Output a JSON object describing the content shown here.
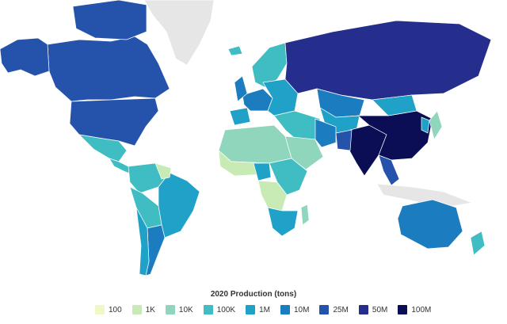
{
  "legend": {
    "title": "2020 Production (tons)",
    "items": [
      {
        "label": "100",
        "color": "#eef9c7"
      },
      {
        "label": "1K",
        "color": "#c8eab5"
      },
      {
        "label": "10K",
        "color": "#8fd6bd"
      },
      {
        "label": "100K",
        "color": "#3fbdc2"
      },
      {
        "label": "1M",
        "color": "#1fa1c8"
      },
      {
        "label": "10M",
        "color": "#1b7cbf"
      },
      {
        "label": "25M",
        "color": "#2553ac"
      },
      {
        "label": "50M",
        "color": "#262e8d"
      },
      {
        "label": "100M",
        "color": "#0b0e55"
      }
    ]
  },
  "colors": {
    "no_data": "#e6e6e6",
    "border": "#ffffff",
    "background": "#ffffff"
  },
  "regions": [
    {
      "name": "Canada",
      "level": 6
    },
    {
      "name": "Alaska",
      "level": 6
    },
    {
      "name": "Canadian Arctic",
      "level": 6
    },
    {
      "name": "Greenland",
      "level": -1
    },
    {
      "name": "United States",
      "level": 6
    },
    {
      "name": "Mexico",
      "level": 3
    },
    {
      "name": "Central America",
      "level": 3
    },
    {
      "name": "Colombia Venezuela",
      "level": 3
    },
    {
      "name": "Brazil",
      "level": 4
    },
    {
      "name": "Peru Bolivia",
      "level": 3
    },
    {
      "name": "Argentina",
      "level": 5
    },
    {
      "name": "Chile",
      "level": 4
    },
    {
      "name": "Guianas",
      "level": 1
    },
    {
      "name": "Iceland",
      "level": 3
    },
    {
      "name": "Scandinavia",
      "level": 3
    },
    {
      "name": "Western Europe",
      "level": 5
    },
    {
      "name": "Eastern Europe",
      "level": 4
    },
    {
      "name": "Iberia",
      "level": 4
    },
    {
      "name": "UK",
      "level": 5
    },
    {
      "name": "Russia",
      "level": 7
    },
    {
      "name": "Kazakhstan",
      "level": 5
    },
    {
      "name": "Central Asia",
      "level": 4
    },
    {
      "name": "Middle East",
      "level": 3
    },
    {
      "name": "Iran",
      "level": 5
    },
    {
      "name": "Saudi Arabia",
      "level": 2
    },
    {
      "name": "North Africa",
      "level": 2
    },
    {
      "name": "Sahel",
      "level": 1
    },
    {
      "name": "Nigeria",
      "level": 4
    },
    {
      "name": "East Africa",
      "level": 3
    },
    {
      "name": "Central Africa",
      "level": 1
    },
    {
      "name": "Southern Africa",
      "level": 4
    },
    {
      "name": "Madagascar",
      "level": 2
    },
    {
      "name": "India",
      "level": 8
    },
    {
      "name": "Pakistan",
      "level": 6
    },
    {
      "name": "China",
      "level": 8
    },
    {
      "name": "Mongolia",
      "level": 4
    },
    {
      "name": "Southeast Asia",
      "level": 6
    },
    {
      "name": "Indonesia",
      "level": -1
    },
    {
      "name": "Japan",
      "level": 2
    },
    {
      "name": "Korea",
      "level": 4
    },
    {
      "name": "Australia",
      "level": 5
    },
    {
      "name": "New Zealand",
      "level": 3
    }
  ]
}
